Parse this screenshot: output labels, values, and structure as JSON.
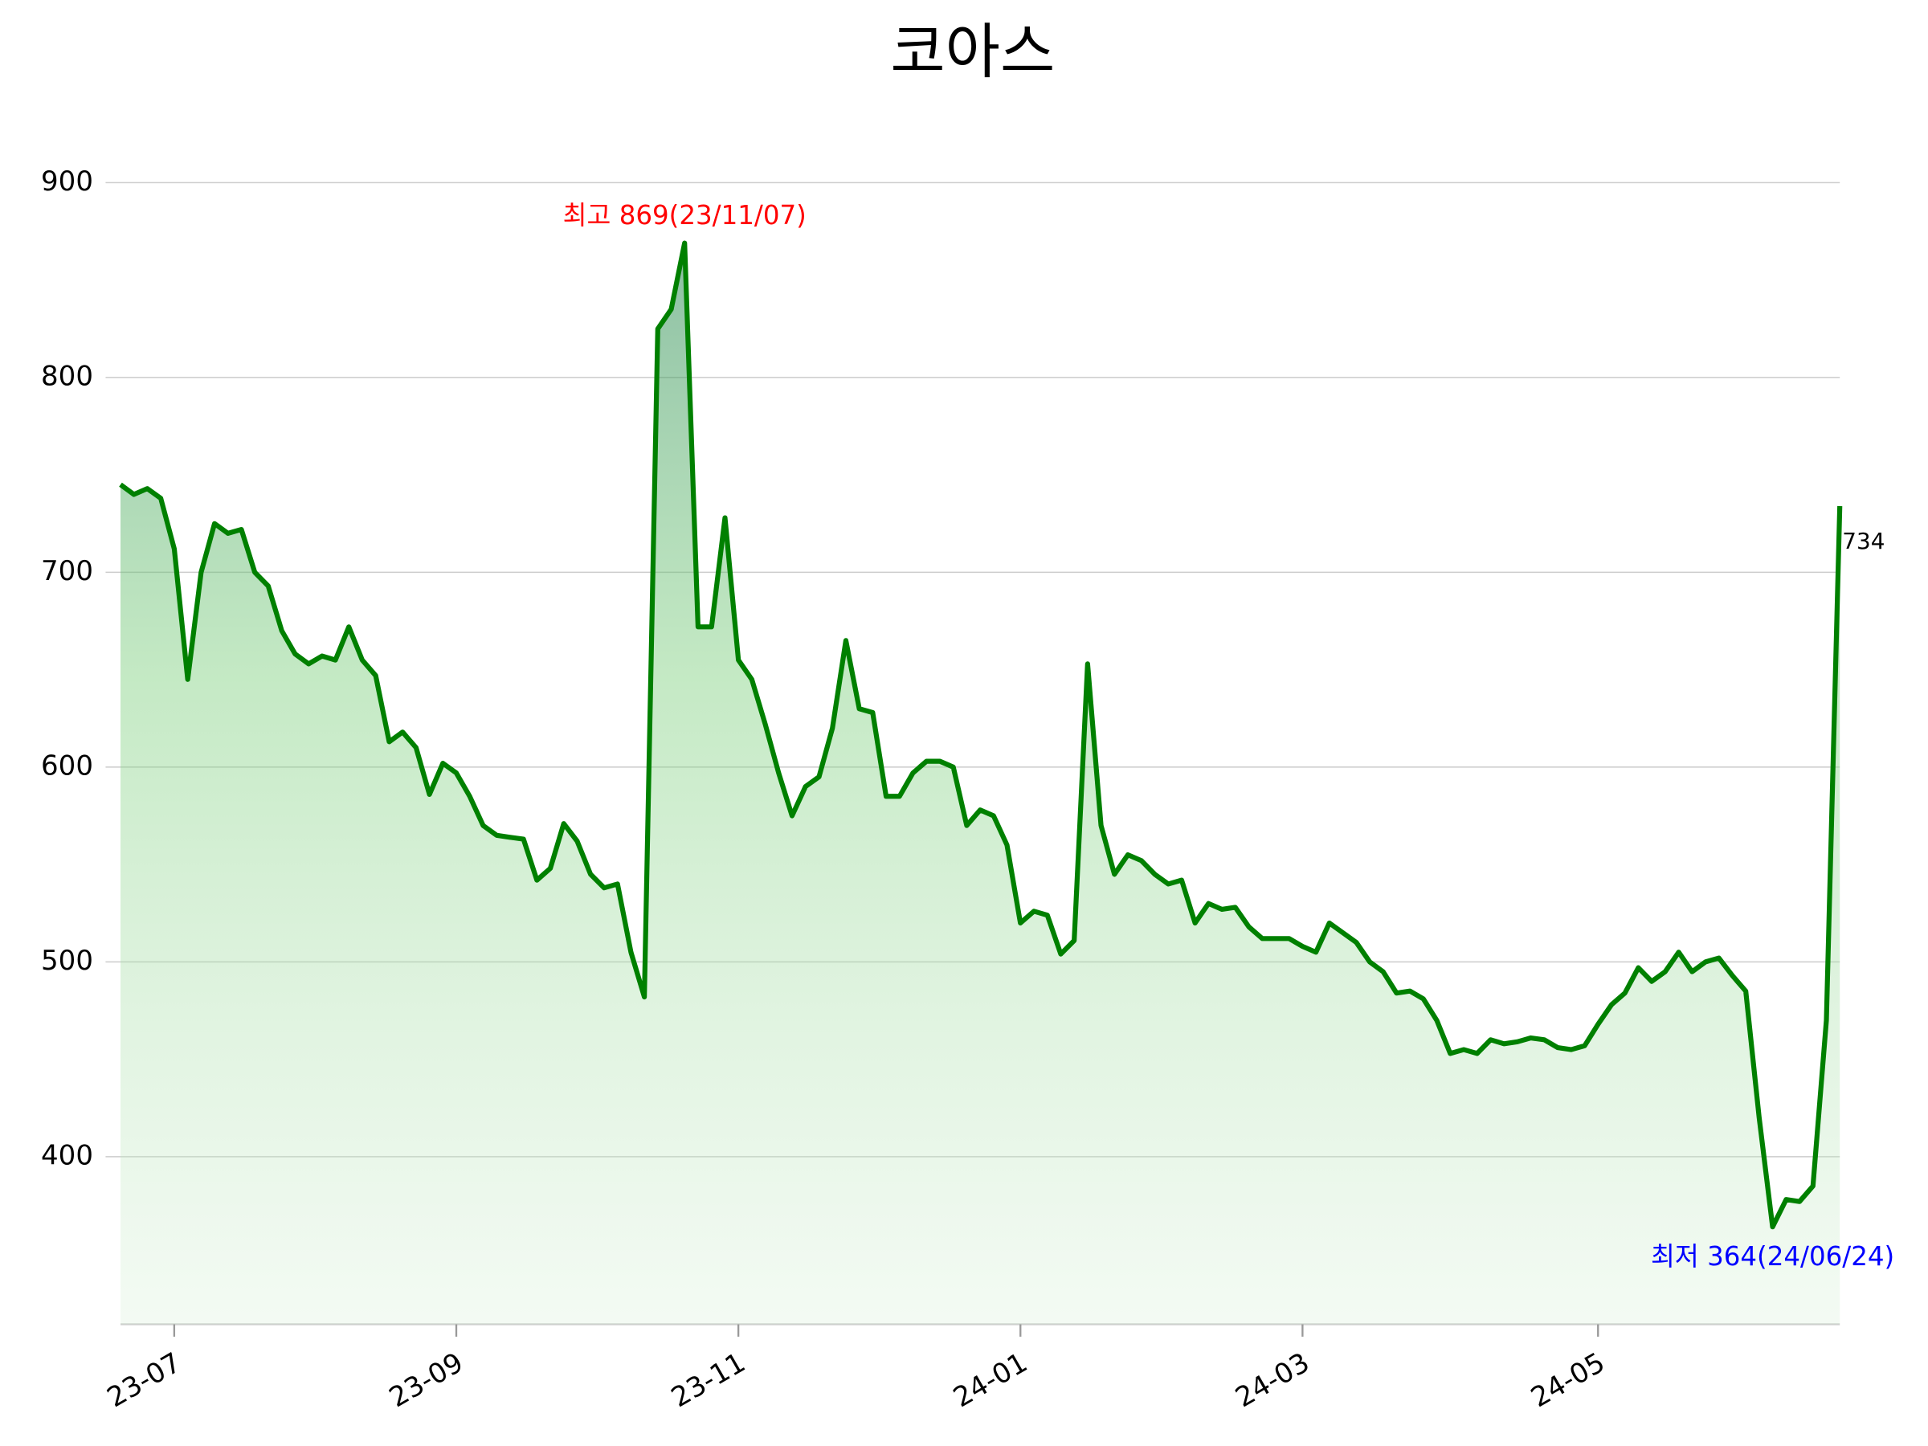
{
  "chart_data": {
    "type": "line",
    "title": "코아스",
    "categories": [
      null,
      null,
      null,
      null,
      "23-07",
      null,
      null,
      null,
      null,
      null,
      null,
      null,
      null,
      null,
      null,
      null,
      null,
      null,
      null,
      null,
      null,
      null,
      null,
      null,
      null,
      "23-09",
      null,
      null,
      null,
      null,
      null,
      null,
      null,
      null,
      null,
      null,
      null,
      null,
      null,
      null,
      null,
      null,
      null,
      null,
      null,
      null,
      "23-11",
      null,
      null,
      null,
      null,
      null,
      null,
      null,
      null,
      null,
      null,
      null,
      null,
      null,
      null,
      null,
      null,
      null,
      null,
      null,
      null,
      "24-01",
      null,
      null,
      null,
      null,
      null,
      null,
      null,
      null,
      null,
      null,
      null,
      null,
      null,
      null,
      null,
      null,
      null,
      null,
      null,
      null,
      "24-03",
      null,
      null,
      null,
      null,
      null,
      null,
      null,
      null,
      null,
      null,
      null,
      null,
      null,
      null,
      null,
      null,
      null,
      null,
      null,
      null,
      null,
      "24-05",
      null,
      null,
      null,
      null,
      null,
      null,
      null,
      null,
      null,
      null,
      null,
      null,
      null,
      null,
      null,
      null,
      null,
      null
    ],
    "series": [
      {
        "name": "코아스",
        "color": "#008000",
        "values": [
          745,
          740,
          743,
          738,
          712,
          645,
          700,
          725,
          720,
          722,
          700,
          693,
          670,
          658,
          653,
          657,
          655,
          672,
          655,
          647,
          613,
          618,
          610,
          586,
          602,
          597,
          585,
          570,
          565,
          564,
          563,
          542,
          548,
          571,
          562,
          545,
          538,
          540,
          505,
          482,
          825,
          835,
          869,
          672,
          672,
          728,
          655,
          645,
          622,
          597,
          575,
          590,
          595,
          620,
          665,
          630,
          628,
          585,
          585,
          597,
          603,
          603,
          600,
          570,
          578,
          575,
          560,
          520,
          526,
          524,
          504,
          511,
          653,
          570,
          545,
          555,
          552,
          545,
          540,
          542,
          520,
          530,
          527,
          528,
          518,
          512,
          512,
          512,
          508,
          505,
          520,
          515,
          510,
          500,
          495,
          484,
          485,
          481,
          470,
          453,
          455,
          453,
          460,
          458,
          459,
          461,
          460,
          456,
          455,
          457,
          468,
          478,
          484,
          497,
          490,
          495,
          505,
          495,
          500,
          502,
          493,
          485,
          420,
          364,
          378,
          377,
          385,
          470,
          734
        ]
      }
    ],
    "max_label": "최고 869(23/11/07)",
    "min_label": "최저 364(24/06/24)",
    "ylim": [
      314,
      930
    ],
    "yticks": [
      400,
      500,
      600,
      700,
      800,
      900
    ],
    "grid": true
  }
}
